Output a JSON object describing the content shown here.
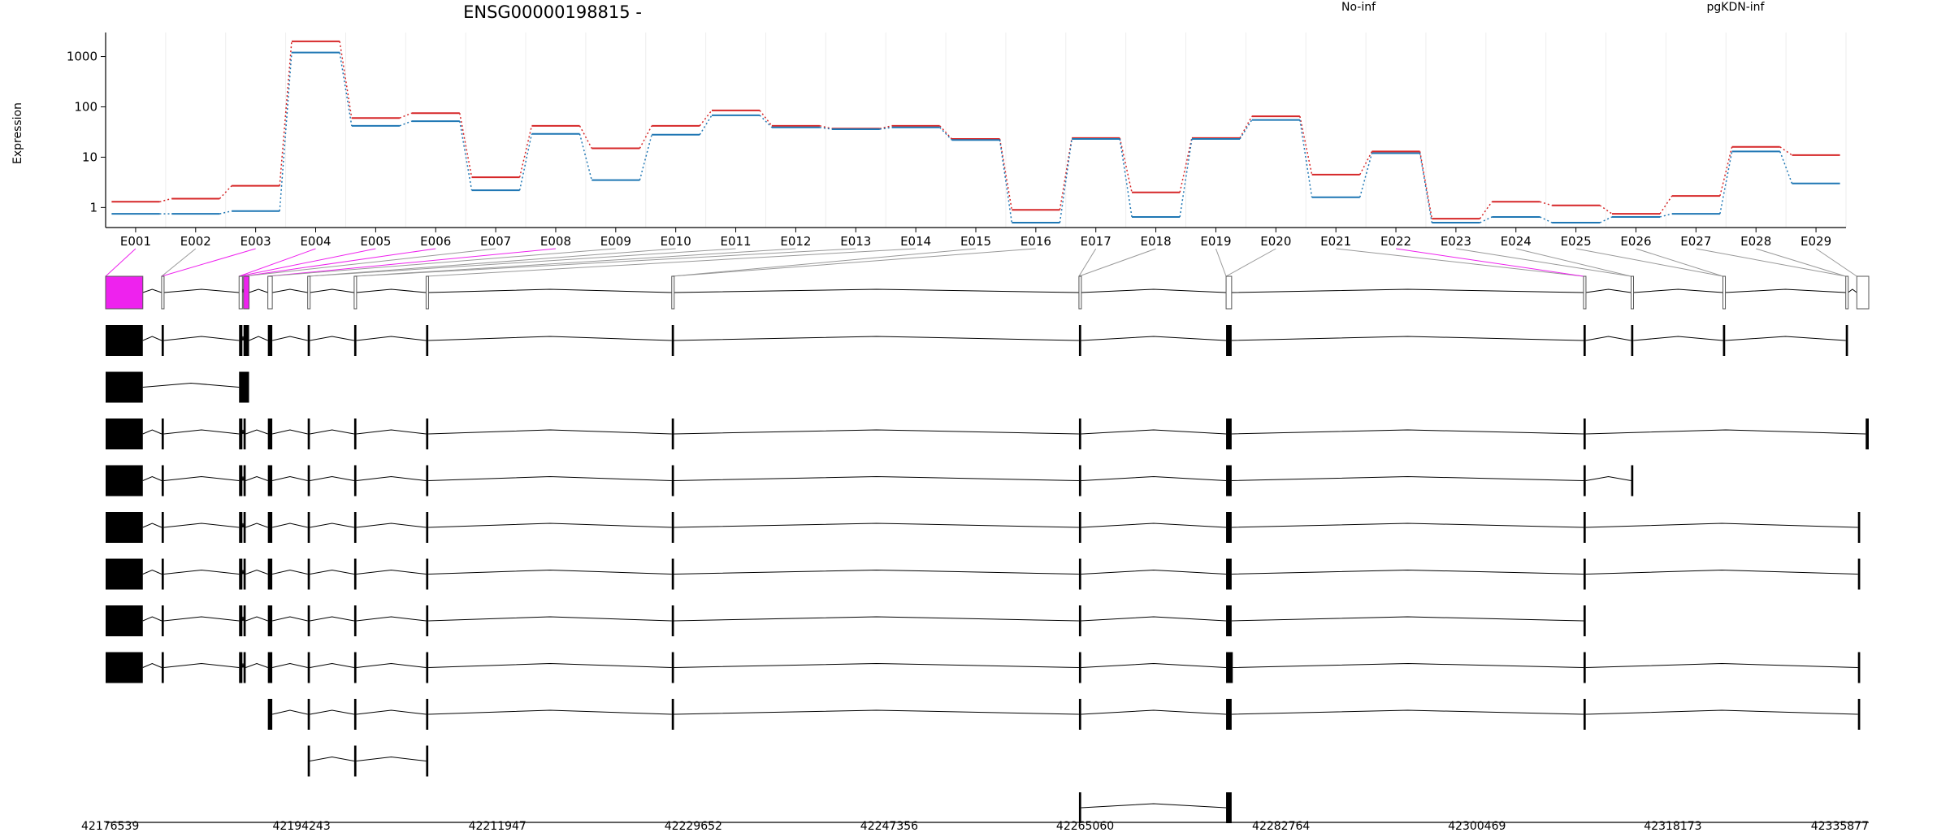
{
  "title": "ENSG00000198815 -",
  "colors": {
    "background": "#ffffff",
    "series_no_inf": "#d62728",
    "series_pgkdn_inf": "#1f77b4",
    "highlight": "#ee22ee",
    "exon_fill": "#000000",
    "grid": "#eeeeee"
  },
  "chart_data": {
    "type": "line",
    "ylabel": "Expression",
    "yscale": "log",
    "ylim": [
      0.4,
      3000
    ],
    "yticks": [
      1,
      10,
      100,
      1000
    ],
    "ytick_labels": [
      "1",
      "10",
      "100",
      "1000"
    ],
    "grid": true,
    "legend_position": "top-right",
    "categories": [
      "E001",
      "E002",
      "E003",
      "E004",
      "E005",
      "E006",
      "E007",
      "E008",
      "E009",
      "E010",
      "E011",
      "E012",
      "E013",
      "E014",
      "E015",
      "E016",
      "E017",
      "E018",
      "E019",
      "E020",
      "E021",
      "E022",
      "E023",
      "E024",
      "E025",
      "E026",
      "E027",
      "E028",
      "E029"
    ],
    "series": [
      {
        "name": "No-inf",
        "values": [
          1.3,
          1.5,
          2.7,
          2000,
          60,
          75,
          4,
          42,
          15,
          42,
          85,
          42,
          37,
          42,
          23,
          0.9,
          24,
          2,
          24,
          65,
          4.5,
          13,
          0.6,
          1.3,
          1.1,
          0.75,
          1.7,
          16,
          11
        ]
      },
      {
        "name": "pgKDN-inf",
        "values": [
          0.75,
          0.75,
          0.85,
          1200,
          42,
          52,
          2.2,
          29,
          3.5,
          28,
          68,
          39,
          36,
          39,
          22,
          0.5,
          23,
          0.65,
          23,
          55,
          1.6,
          12,
          0.5,
          0.65,
          0.5,
          0.65,
          0.75,
          13,
          3
        ]
      }
    ],
    "genomic_axis": {
      "tick_labels": [
        "42176539",
        "42194243",
        "42211947",
        "42229652",
        "42247356",
        "42265060",
        "42282764",
        "42300469",
        "42318173",
        "42335877"
      ],
      "range": [
        42176539,
        42335877
      ]
    },
    "highlighted_exons": [
      "E001",
      "E003",
      "E004",
      "E005",
      "E006",
      "E008",
      "E022"
    ],
    "exon_genomic_spans": [
      [
        42176539,
        42179900
      ],
      [
        42181600,
        42181800
      ],
      [
        42188600,
        42188900
      ],
      [
        42189000,
        42189500
      ],
      [
        42191200,
        42191600
      ],
      [
        42194800,
        42195000
      ],
      [
        42199000,
        42199200
      ],
      [
        42205500,
        42205700
      ],
      [
        42227700,
        42227900
      ],
      [
        42264500,
        42264700
      ],
      [
        42277800,
        42278300
      ],
      [
        42310100,
        42310300
      ],
      [
        42314400,
        42314600
      ],
      [
        42322700,
        42322900
      ],
      [
        42333800,
        42334000
      ],
      [
        42334800,
        42335877
      ]
    ],
    "transcripts": [
      {
        "exons": [
          [
            42176539,
            42179900
          ],
          [
            42181600,
            42181800
          ],
          [
            42188600,
            42188900
          ],
          [
            42189000,
            42189500
          ],
          [
            42191200,
            42191600
          ],
          [
            42194800,
            42195000
          ],
          [
            42199000,
            42199200
          ],
          [
            42205500,
            42205700
          ],
          [
            42227700,
            42227900
          ],
          [
            42264500,
            42264700
          ],
          [
            42277800,
            42278300
          ],
          [
            42310100,
            42310300
          ],
          [
            42314400,
            42314600
          ],
          [
            42322700,
            42322900
          ],
          [
            42333800,
            42334000
          ]
        ]
      },
      {
        "exons": [
          [
            42176539,
            42179900
          ],
          [
            42188600,
            42189500
          ]
        ]
      },
      {
        "exons": [
          [
            42176539,
            42179900
          ],
          [
            42181600,
            42181800
          ],
          [
            42188600,
            42188900
          ],
          [
            42189000,
            42189200
          ],
          [
            42191200,
            42191600
          ],
          [
            42194800,
            42195000
          ],
          [
            42199000,
            42199200
          ],
          [
            42205500,
            42205700
          ],
          [
            42227700,
            42227900
          ],
          [
            42264500,
            42264700
          ],
          [
            42277800,
            42278300
          ],
          [
            42310100,
            42310300
          ],
          [
            42335600,
            42335877
          ]
        ]
      },
      {
        "exons": [
          [
            42176539,
            42179900
          ],
          [
            42181600,
            42181800
          ],
          [
            42188600,
            42188900
          ],
          [
            42189000,
            42189200
          ],
          [
            42191200,
            42191600
          ],
          [
            42194800,
            42195000
          ],
          [
            42199000,
            42199200
          ],
          [
            42205500,
            42205700
          ],
          [
            42227700,
            42227900
          ],
          [
            42264500,
            42264700
          ],
          [
            42277800,
            42278300
          ],
          [
            42310100,
            42310300
          ],
          [
            42314400,
            42314600
          ]
        ]
      },
      {
        "exons": [
          [
            42176539,
            42179900
          ],
          [
            42181600,
            42181800
          ],
          [
            42188600,
            42188900
          ],
          [
            42189000,
            42189200
          ],
          [
            42191200,
            42191600
          ],
          [
            42194800,
            42195000
          ],
          [
            42199000,
            42199200
          ],
          [
            42205500,
            42205700
          ],
          [
            42227700,
            42227900
          ],
          [
            42264500,
            42264700
          ],
          [
            42277800,
            42278300
          ],
          [
            42310100,
            42310300
          ],
          [
            42334900,
            42335100
          ]
        ]
      },
      {
        "exons": [
          [
            42176539,
            42179900
          ],
          [
            42181600,
            42181800
          ],
          [
            42188600,
            42188900
          ],
          [
            42189000,
            42189200
          ],
          [
            42191200,
            42191600
          ],
          [
            42194800,
            42195000
          ],
          [
            42199000,
            42199200
          ],
          [
            42205500,
            42205700
          ],
          [
            42227700,
            42227900
          ],
          [
            42264500,
            42264700
          ],
          [
            42277800,
            42278300
          ],
          [
            42310100,
            42310300
          ],
          [
            42334900,
            42335100
          ]
        ]
      },
      {
        "exons": [
          [
            42176539,
            42179900
          ],
          [
            42181600,
            42181800
          ],
          [
            42188600,
            42188900
          ],
          [
            42189000,
            42189200
          ],
          [
            42191200,
            42191600
          ],
          [
            42194800,
            42195000
          ],
          [
            42199000,
            42199200
          ],
          [
            42205500,
            42205700
          ],
          [
            42227700,
            42227900
          ],
          [
            42264500,
            42264700
          ],
          [
            42277800,
            42278300
          ],
          [
            42310100,
            42310300
          ]
        ]
      },
      {
        "exons": [
          [
            42176539,
            42179900
          ],
          [
            42181600,
            42181800
          ],
          [
            42188600,
            42188900
          ],
          [
            42189000,
            42189200
          ],
          [
            42191200,
            42191600
          ],
          [
            42194800,
            42195000
          ],
          [
            42199000,
            42199200
          ],
          [
            42205500,
            42205700
          ],
          [
            42227700,
            42227900
          ],
          [
            42264500,
            42264700
          ],
          [
            42277800,
            42278400
          ],
          [
            42310100,
            42310300
          ],
          [
            42334900,
            42335100
          ]
        ]
      },
      {
        "exons": [
          [
            42191200,
            42191600
          ],
          [
            42194800,
            42195000
          ],
          [
            42199000,
            42199200
          ],
          [
            42205500,
            42205700
          ],
          [
            42227700,
            42227900
          ],
          [
            42264500,
            42264700
          ],
          [
            42277800,
            42278300
          ],
          [
            42310100,
            42310300
          ],
          [
            42334900,
            42335100
          ]
        ]
      },
      {
        "exons": [
          [
            42194800,
            42195000
          ],
          [
            42199000,
            42199200
          ],
          [
            42205500,
            42205700
          ]
        ]
      },
      {
        "exons": [
          [
            42264500,
            42264700
          ],
          [
            42277800,
            42278300
          ]
        ]
      }
    ]
  }
}
